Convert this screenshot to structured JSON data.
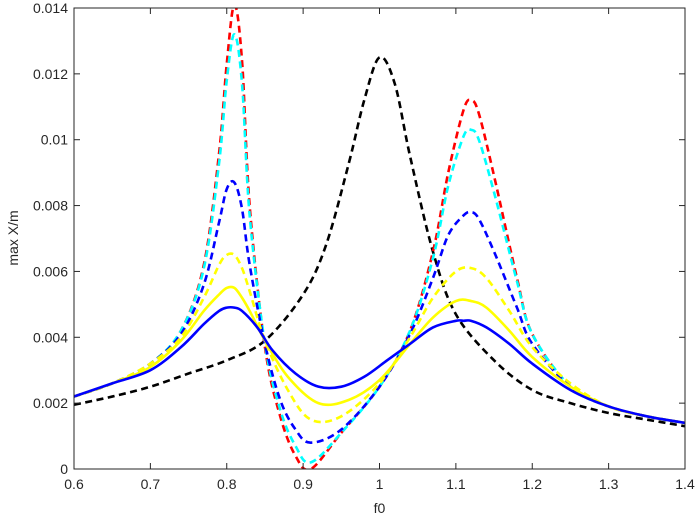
{
  "chart_data": {
    "type": "line",
    "title": "",
    "xlabel": "f0",
    "ylabel": "max X/m",
    "xlim": [
      0.6,
      1.4
    ],
    "ylim": [
      0,
      0.014
    ],
    "grid": false,
    "legend": "none",
    "xticks": [
      "0.6",
      "0.7",
      "0.8",
      "0.9",
      "1",
      "1.1",
      "1.2",
      "1.3",
      "1.4"
    ],
    "yticks": [
      "0",
      "0.002",
      "0.004",
      "0.006",
      "0.008",
      "0.01",
      "0.012",
      "0.014"
    ],
    "series": [
      {
        "color": "#000000",
        "style": "dashed",
        "x": [
          0.6,
          0.65,
          0.7,
          0.75,
          0.8,
          0.85,
          0.9,
          0.93,
          0.96,
          0.98,
          1.0,
          1.02,
          1.04,
          1.07,
          1.1,
          1.15,
          1.2,
          1.25,
          1.3,
          1.35,
          1.4
        ],
        "y": [
          0.00195,
          0.0022,
          0.0025,
          0.0029,
          0.0033,
          0.0039,
          0.0053,
          0.0068,
          0.0093,
          0.0112,
          0.0125,
          0.0117,
          0.0095,
          0.0066,
          0.0047,
          0.0033,
          0.0024,
          0.002,
          0.0017,
          0.0015,
          0.0013
        ]
      },
      {
        "color": "#ff0000",
        "style": "dashed",
        "x": [
          0.6,
          0.65,
          0.7,
          0.74,
          0.77,
          0.79,
          0.8,
          0.81,
          0.82,
          0.83,
          0.85,
          0.87,
          0.89,
          0.91,
          0.95,
          1.0,
          1.04,
          1.07,
          1.09,
          1.11,
          1.12,
          1.13,
          1.15,
          1.18,
          1.2,
          1.25,
          1.3,
          1.35,
          1.4
        ],
        "y": [
          0.0022,
          0.0026,
          0.0032,
          0.0042,
          0.0062,
          0.0096,
          0.0123,
          0.0141,
          0.0124,
          0.008,
          0.0037,
          0.0016,
          0.0004,
          0.0,
          0.0011,
          0.0025,
          0.0042,
          0.0066,
          0.009,
          0.0109,
          0.0112,
          0.0108,
          0.0089,
          0.0058,
          0.0041,
          0.0025,
          0.0019,
          0.0016,
          0.0014
        ]
      },
      {
        "color": "#00ffff",
        "style": "dashed",
        "x": [
          0.6,
          0.65,
          0.7,
          0.74,
          0.77,
          0.79,
          0.8,
          0.81,
          0.82,
          0.83,
          0.85,
          0.87,
          0.89,
          0.91,
          0.95,
          1.0,
          1.04,
          1.07,
          1.09,
          1.11,
          1.12,
          1.13,
          1.15,
          1.18,
          1.2,
          1.25,
          1.3,
          1.35,
          1.4
        ],
        "y": [
          0.0022,
          0.0026,
          0.0032,
          0.0042,
          0.0061,
          0.0093,
          0.0118,
          0.0132,
          0.0117,
          0.0077,
          0.0038,
          0.0018,
          0.0007,
          0.0002,
          0.0011,
          0.0025,
          0.0042,
          0.0064,
          0.0086,
          0.0101,
          0.0103,
          0.01,
          0.0084,
          0.0057,
          0.0041,
          0.0025,
          0.0019,
          0.0016,
          0.0014
        ]
      },
      {
        "color": "#0000ff",
        "style": "dashed",
        "x": [
          0.6,
          0.65,
          0.7,
          0.74,
          0.77,
          0.79,
          0.8,
          0.81,
          0.82,
          0.83,
          0.85,
          0.87,
          0.89,
          0.91,
          0.95,
          1.0,
          1.04,
          1.07,
          1.09,
          1.11,
          1.12,
          1.13,
          1.15,
          1.18,
          1.2,
          1.25,
          1.3,
          1.35,
          1.4
        ],
        "y": [
          0.0022,
          0.0026,
          0.0032,
          0.0041,
          0.0056,
          0.0075,
          0.0085,
          0.0087,
          0.0079,
          0.0062,
          0.0038,
          0.0021,
          0.0012,
          0.0008,
          0.0012,
          0.0025,
          0.0041,
          0.0058,
          0.0071,
          0.0077,
          0.0078,
          0.0076,
          0.0066,
          0.0049,
          0.0038,
          0.0025,
          0.0019,
          0.0016,
          0.0014
        ]
      },
      {
        "color": "#ffff00",
        "style": "dashed",
        "x": [
          0.6,
          0.65,
          0.7,
          0.74,
          0.77,
          0.79,
          0.8,
          0.81,
          0.82,
          0.83,
          0.85,
          0.88,
          0.91,
          0.95,
          1.0,
          1.04,
          1.07,
          1.1,
          1.12,
          1.14,
          1.17,
          1.2,
          1.25,
          1.3,
          1.35,
          1.4
        ],
        "y": [
          0.0022,
          0.0026,
          0.0032,
          0.004,
          0.0052,
          0.0062,
          0.0065,
          0.0065,
          0.0061,
          0.0054,
          0.0039,
          0.0024,
          0.0015,
          0.0016,
          0.0026,
          0.004,
          0.0052,
          0.006,
          0.0061,
          0.0058,
          0.0048,
          0.0037,
          0.0026,
          0.0019,
          0.0016,
          0.0014
        ]
      },
      {
        "color": "#ffff00",
        "style": "solid",
        "x": [
          0.6,
          0.65,
          0.7,
          0.74,
          0.77,
          0.79,
          0.8,
          0.81,
          0.82,
          0.83,
          0.85,
          0.88,
          0.92,
          0.96,
          1.0,
          1.04,
          1.07,
          1.1,
          1.12,
          1.14,
          1.17,
          1.2,
          1.25,
          1.3,
          1.35,
          1.4
        ],
        "y": [
          0.0022,
          0.0026,
          0.0031,
          0.0039,
          0.0048,
          0.0053,
          0.0055,
          0.0055,
          0.0052,
          0.0048,
          0.0039,
          0.0028,
          0.002,
          0.0021,
          0.0027,
          0.0038,
          0.0046,
          0.0051,
          0.0051,
          0.0049,
          0.0042,
          0.0034,
          0.0025,
          0.0019,
          0.0016,
          0.0014
        ]
      },
      {
        "color": "#0000ff",
        "style": "solid",
        "x": [
          0.6,
          0.65,
          0.7,
          0.74,
          0.77,
          0.79,
          0.8,
          0.81,
          0.82,
          0.84,
          0.86,
          0.89,
          0.92,
          0.95,
          0.98,
          1.01,
          1.04,
          1.07,
          1.1,
          1.11,
          1.12,
          1.14,
          1.17,
          1.2,
          1.25,
          1.3,
          1.35,
          1.4
        ],
        "y": [
          0.0022,
          0.0026,
          0.003,
          0.0037,
          0.0044,
          0.0048,
          0.0049,
          0.0049,
          0.0048,
          0.0043,
          0.0036,
          0.0029,
          0.0025,
          0.0025,
          0.0028,
          0.0033,
          0.0038,
          0.0043,
          0.0045,
          0.0045,
          0.0045,
          0.0043,
          0.0038,
          0.0032,
          0.0024,
          0.0019,
          0.0016,
          0.0014
        ]
      }
    ]
  }
}
